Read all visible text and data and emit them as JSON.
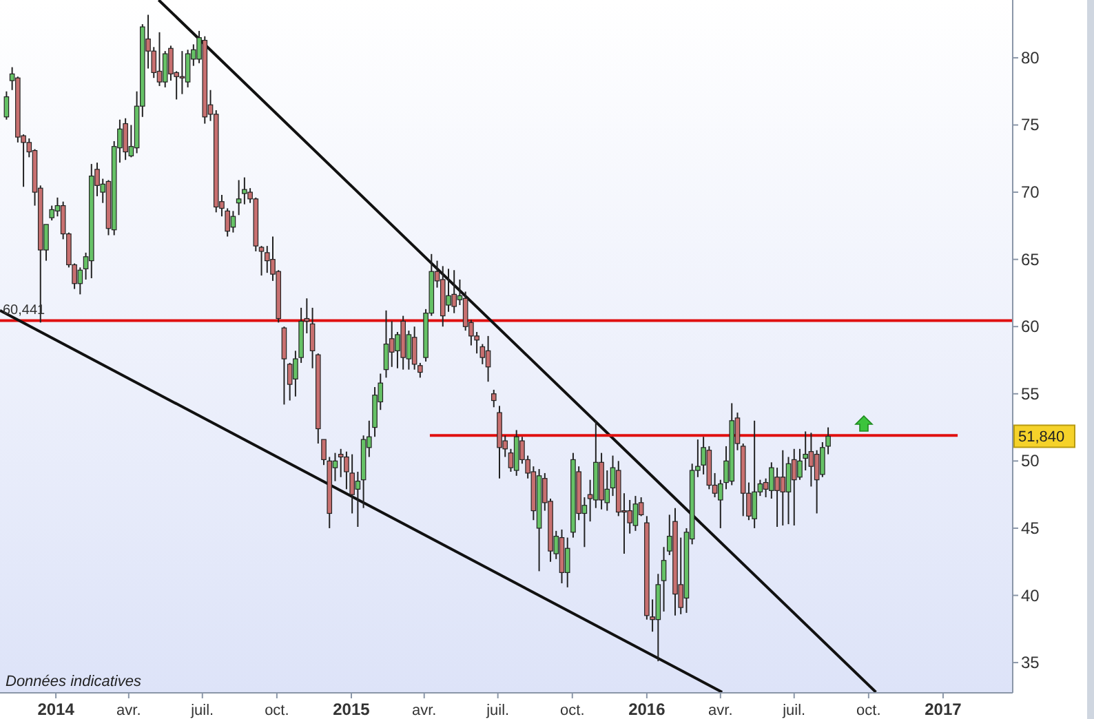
{
  "chart_data": {
    "type": "candlestick",
    "x": [
      "2013-11-01",
      "2013-11-08",
      "2013-11-15",
      "2013-11-22",
      "2013-11-29",
      "2013-12-06",
      "2013-12-13",
      "2013-12-20",
      "2013-12-27",
      "2014-01-03",
      "2014-01-10",
      "2014-01-17",
      "2014-01-24",
      "2014-01-31",
      "2014-02-07",
      "2014-02-14",
      "2014-02-21",
      "2014-02-28",
      "2014-03-07",
      "2014-03-14",
      "2014-03-21",
      "2014-03-28",
      "2014-04-04",
      "2014-04-11",
      "2014-04-18",
      "2014-04-25",
      "2014-05-02",
      "2014-05-09",
      "2014-05-16",
      "2014-05-23",
      "2014-05-30",
      "2014-06-06",
      "2014-06-13",
      "2014-06-20",
      "2014-06-27",
      "2014-07-04",
      "2014-07-11",
      "2014-07-18",
      "2014-07-25",
      "2014-08-01",
      "2014-08-08",
      "2014-08-15",
      "2014-08-22",
      "2014-08-29",
      "2014-09-05",
      "2014-09-12",
      "2014-09-19",
      "2014-09-26",
      "2014-10-03",
      "2014-10-10",
      "2014-10-17",
      "2014-10-24",
      "2014-10-31",
      "2014-11-07",
      "2014-11-14",
      "2014-11-21",
      "2014-11-28",
      "2014-12-05",
      "2014-12-12",
      "2014-12-19",
      "2014-12-26",
      "2015-01-02",
      "2015-01-09",
      "2015-01-16",
      "2015-01-23",
      "2015-01-30",
      "2015-02-06",
      "2015-02-13",
      "2015-02-20",
      "2015-02-27",
      "2015-03-06",
      "2015-03-13",
      "2015-03-20",
      "2015-03-27",
      "2015-04-03",
      "2015-04-10",
      "2015-04-17",
      "2015-04-24",
      "2015-05-01",
      "2015-05-08",
      "2015-05-15",
      "2015-05-22",
      "2015-05-29",
      "2015-06-05",
      "2015-06-12",
      "2015-06-19",
      "2015-06-26",
      "2015-07-03",
      "2015-07-10",
      "2015-07-17",
      "2015-07-24",
      "2015-07-31",
      "2015-08-07",
      "2015-08-14",
      "2015-08-21",
      "2015-08-28",
      "2015-09-04",
      "2015-09-11",
      "2015-09-18",
      "2015-09-25",
      "2015-10-02",
      "2015-10-09",
      "2015-10-16",
      "2015-10-23",
      "2015-10-30",
      "2015-11-06",
      "2015-11-13",
      "2015-11-20",
      "2015-11-27",
      "2015-12-04",
      "2015-12-11",
      "2015-12-18",
      "2015-12-25",
      "2016-01-01",
      "2016-01-08",
      "2016-01-15",
      "2016-01-22",
      "2016-01-29",
      "2016-02-05",
      "2016-02-12",
      "2016-02-19",
      "2016-02-26",
      "2016-03-04",
      "2016-03-11",
      "2016-03-18",
      "2016-03-25",
      "2016-04-01",
      "2016-04-08",
      "2016-04-15",
      "2016-04-22",
      "2016-04-29",
      "2016-05-06",
      "2016-05-13",
      "2016-05-20",
      "2016-05-27",
      "2016-06-03",
      "2016-06-10",
      "2016-06-17",
      "2016-06-24",
      "2016-07-01",
      "2016-07-08",
      "2016-07-15",
      "2016-07-22",
      "2016-07-29",
      "2016-08-05",
      "2016-08-12"
    ],
    "ohlc": [
      [
        75.6,
        77.5,
        75.4,
        77.1
      ],
      [
        78.3,
        79.3,
        77.6,
        78.8
      ],
      [
        78.5,
        78.6,
        73.7,
        74.1
      ],
      [
        74.2,
        74.3,
        70.4,
        73.7
      ],
      [
        73.7,
        74,
        72.6,
        73
      ],
      [
        73.1,
        73.2,
        69,
        70
      ],
      [
        70.3,
        70.5,
        60.3,
        65.7
      ],
      [
        65.7,
        67.6,
        64.9,
        67.6
      ],
      [
        68.1,
        69,
        67.9,
        68.7
      ],
      [
        68.6,
        69.6,
        68.2,
        69
      ],
      [
        69,
        69.3,
        66.5,
        66.9
      ],
      [
        66.9,
        67,
        64.4,
        64.6
      ],
      [
        64.6,
        64.7,
        62.8,
        63.2
      ],
      [
        63.2,
        64.4,
        62.4,
        64.2
      ],
      [
        64.3,
        65.5,
        63.5,
        65.2
      ],
      [
        64.9,
        72.1,
        63.6,
        71.2
      ],
      [
        71.7,
        72.2,
        69.7,
        70.5
      ],
      [
        70,
        71,
        69.2,
        70.6
      ],
      [
        70.8,
        70.9,
        66.8,
        67.3
      ],
      [
        67.2,
        73.8,
        66.8,
        73.4
      ],
      [
        73.3,
        75.4,
        72.2,
        74.7
      ],
      [
        75.1,
        75.5,
        72.4,
        73
      ],
      [
        72.7,
        75,
        72.6,
        73.4
      ],
      [
        73.3,
        77.5,
        72.9,
        76.4
      ],
      [
        76.4,
        82.5,
        75.6,
        82.3
      ],
      [
        81.4,
        83.2,
        79.2,
        80.5
      ],
      [
        80.5,
        80.8,
        78.5,
        78.9
      ],
      [
        79,
        81.9,
        77.9,
        78.2
      ],
      [
        78.2,
        80.5,
        77.8,
        80.3
      ],
      [
        80.7,
        80.9,
        78.3,
        78.8
      ],
      [
        78.9,
        79,
        76.9,
        78.6
      ],
      [
        78.6,
        80.5,
        77.3,
        78.5
      ],
      [
        78.2,
        80.6,
        77.8,
        80.3
      ],
      [
        79.9,
        81,
        79.4,
        80.6
      ],
      [
        79.9,
        82,
        79.6,
        81.5
      ],
      [
        81.3,
        81.6,
        75.1,
        75.6
      ],
      [
        76.5,
        77.6,
        75.3,
        75.8
      ],
      [
        75.8,
        76.1,
        68.5,
        68.9
      ],
      [
        69.3,
        69.8,
        68.2,
        68.8
      ],
      [
        68.6,
        68.8,
        66.7,
        67.1
      ],
      [
        67.4,
        68.6,
        67,
        68.2
      ],
      [
        69.2,
        70.9,
        68.3,
        69.5
      ],
      [
        69.9,
        71.1,
        69.1,
        70.2
      ],
      [
        70,
        70.3,
        69.2,
        69.5
      ],
      [
        69.5,
        69.6,
        65.6,
        66
      ],
      [
        65.9,
        66,
        63.8,
        65.6
      ],
      [
        65.5,
        66,
        64,
        64.9
      ],
      [
        65,
        66.7,
        63.4,
        63.9
      ],
      [
        64.1,
        64.2,
        60.3,
        60.6
      ],
      [
        59.9,
        60,
        54.2,
        57.6
      ],
      [
        57.2,
        57.3,
        54.5,
        55.7
      ],
      [
        56.1,
        58.2,
        54.8,
        57.6
      ],
      [
        57.7,
        61.4,
        57.3,
        60.4
      ],
      [
        60.6,
        62.1,
        59.5,
        60.4
      ],
      [
        60.2,
        61.4,
        56.9,
        58.2
      ],
      [
        57.9,
        58,
        51.3,
        52.4
      ],
      [
        51.6,
        51.6,
        49.7,
        50.1
      ],
      [
        50,
        50.3,
        45,
        46.1
      ],
      [
        49.5,
        50.6,
        48.5,
        50
      ],
      [
        50.5,
        50.9,
        48.8,
        50.3
      ],
      [
        50.3,
        50.7,
        47.9,
        49.2
      ],
      [
        49.1,
        50.5,
        46.1,
        47.5
      ],
      [
        47.9,
        49.2,
        45.1,
        48.5
      ],
      [
        48.6,
        51.9,
        46.5,
        51.6
      ],
      [
        51,
        53,
        50.3,
        51.8
      ],
      [
        52.5,
        55.5,
        51.8,
        54.9
      ],
      [
        54.4,
        56.5,
        53.8,
        55.8
      ],
      [
        56.8,
        61.2,
        56.2,
        58.7
      ],
      [
        59.1,
        60.4,
        57,
        58.1
      ],
      [
        58.2,
        59.6,
        56.9,
        59.4
      ],
      [
        60.4,
        60.8,
        56.8,
        57.7
      ],
      [
        57.6,
        59.7,
        56.8,
        59.4
      ],
      [
        59.2,
        60,
        56.8,
        57.2
      ],
      [
        57.1,
        57.3,
        56.2,
        56.6
      ],
      [
        57.7,
        61.3,
        57.4,
        61
      ],
      [
        61,
        65.4,
        60.8,
        64.1
      ],
      [
        64.1,
        64.9,
        62.9,
        63.4
      ],
      [
        63.5,
        64.5,
        60,
        60.8
      ],
      [
        61.6,
        64.3,
        61.1,
        62.3
      ],
      [
        62.4,
        64.2,
        61,
        61.5
      ],
      [
        62,
        63.5,
        61.6,
        62.3
      ],
      [
        62.1,
        62.6,
        59.7,
        60
      ],
      [
        60.3,
        60.5,
        58.6,
        59.3
      ],
      [
        59.3,
        59.6,
        58,
        59
      ],
      [
        58.5,
        58.7,
        57.2,
        57.7
      ],
      [
        58.2,
        59.3,
        55.9,
        57
      ],
      [
        55,
        55.3,
        54,
        54.5
      ],
      [
        53.6,
        54.1,
        48.7,
        51
      ],
      [
        51.5,
        51.9,
        50.3,
        50.9
      ],
      [
        50.6,
        50.9,
        49.2,
        49.5
      ],
      [
        49.3,
        52.3,
        48.9,
        51.8
      ],
      [
        51.5,
        51.8,
        49.8,
        50.1
      ],
      [
        50.1,
        50.4,
        48.7,
        49.1
      ],
      [
        49.2,
        49.6,
        45.6,
        46.3
      ],
      [
        45,
        49.4,
        41.8,
        48.9
      ],
      [
        48.7,
        49.1,
        46.3,
        46.9
      ],
      [
        47,
        47.2,
        42.5,
        43.3
      ],
      [
        43.1,
        44.8,
        42.7,
        44.4
      ],
      [
        44.3,
        44.9,
        40.9,
        41.7
      ],
      [
        41.7,
        44.3,
        40.6,
        43.5
      ],
      [
        44.7,
        50.6,
        44.3,
        50.1
      ],
      [
        49.2,
        49.6,
        45.6,
        46.1
      ],
      [
        46.1,
        47.3,
        43.6,
        46.7
      ],
      [
        47.5,
        48.6,
        45.5,
        47.2
      ],
      [
        47.1,
        53,
        46.5,
        49.9
      ],
      [
        49.9,
        50.6,
        46.4,
        47.1
      ],
      [
        46.9,
        49.3,
        46.3,
        47.9
      ],
      [
        48,
        50.4,
        47.4,
        49.5
      ],
      [
        49.3,
        50,
        45.9,
        46.2
      ],
      [
        46.3,
        47.6,
        43.1,
        46.2
      ],
      [
        46.3,
        47.1,
        44.6,
        45.4
      ],
      [
        45.2,
        47.4,
        44.8,
        46.8
      ],
      [
        46.9,
        47.3,
        45.9,
        46
      ],
      [
        45.4,
        45.9,
        38.2,
        38.5
      ],
      [
        38.4,
        39.7,
        37.3,
        38.2
      ],
      [
        38.2,
        41.6,
        35.1,
        40.8
      ],
      [
        41.1,
        43.6,
        38.8,
        42.6
      ],
      [
        43.3,
        46,
        43,
        44.4
      ],
      [
        45.5,
        46.5,
        38.5,
        40.1
      ],
      [
        40.8,
        44.3,
        38.6,
        39.1
      ],
      [
        39.8,
        45,
        38.7,
        44.7
      ],
      [
        44.2,
        49.8,
        43.8,
        49.3
      ],
      [
        49.3,
        51.6,
        48.8,
        49.6
      ],
      [
        49.7,
        51.8,
        49,
        51
      ],
      [
        50.8,
        51.1,
        47.9,
        48.2
      ],
      [
        48.2,
        49.1,
        47.3,
        47.6
      ],
      [
        47.1,
        48.6,
        45,
        48.3
      ],
      [
        48.4,
        51.1,
        47.9,
        50
      ],
      [
        48.5,
        54.3,
        48.2,
        53
      ],
      [
        53.2,
        53.6,
        50.8,
        51.3
      ],
      [
        51.1,
        51.3,
        45.9,
        47.6
      ],
      [
        47.6,
        48.4,
        45.6,
        45.9
      ],
      [
        45.7,
        53,
        45,
        47.7
      ],
      [
        47.7,
        48.6,
        47.4,
        48.3
      ],
      [
        48.4,
        48.7,
        47.3,
        47.9
      ],
      [
        47.8,
        49.9,
        47.2,
        49.5
      ],
      [
        48.8,
        49.5,
        45.1,
        47.8
      ],
      [
        48.8,
        50.8,
        45.2,
        47.7
      ],
      [
        47.7,
        50.3,
        45.3,
        49.8
      ],
      [
        50.1,
        50.9,
        45.2,
        48.6
      ],
      [
        48.8,
        50.9,
        48.6,
        50
      ],
      [
        50.2,
        52.2,
        49.3,
        50.5
      ],
      [
        50.7,
        52.1,
        48.1,
        49.6
      ],
      [
        50.5,
        50.8,
        46.1,
        48.6
      ],
      [
        49,
        51.4,
        48.8,
        51
      ],
      [
        51.1,
        52.5,
        50.5,
        51.84
      ]
    ],
    "series": [
      {
        "type": "line",
        "x": [
          "2014-05-08",
          "2016-10-10"
        ],
        "values": [
          84.3,
          32.8
        ],
        "color": "#111111"
      },
      {
        "type": "line",
        "x": [
          "2013-10-24",
          "2016-04-03"
        ],
        "values": [
          61.2,
          32.8
        ],
        "color": "#111111"
      },
      {
        "type": "line",
        "x": [
          "2015-04-08",
          "2017-01-19"
        ],
        "values": [
          51.9,
          51.9
        ],
        "color": "#e01010"
      }
    ],
    "xlim": [
      "2013-10-24",
      "2017-03-28"
    ],
    "xticks": [
      {
        "value": "2014-01-01",
        "label": "2014"
      },
      {
        "value": "2014-04-01",
        "label": "avr."
      },
      {
        "value": "2014-07-01",
        "label": "juil."
      },
      {
        "value": "2014-10-01",
        "label": "oct."
      },
      {
        "value": "2015-01-01",
        "label": "2015"
      },
      {
        "value": "2015-04-01",
        "label": "avr."
      },
      {
        "value": "2015-07-01",
        "label": "juil."
      },
      {
        "value": "2015-10-01",
        "label": "oct."
      },
      {
        "value": "2016-01-01",
        "label": "2016"
      },
      {
        "value": "2016-04-01",
        "label": "avr."
      },
      {
        "value": "2016-07-01",
        "label": "juil."
      },
      {
        "value": "2016-10-01",
        "label": "oct."
      },
      {
        "value": "2017-01-01",
        "label": "2017"
      }
    ],
    "ylim": [
      32.75,
      84.3
    ],
    "yticks": [
      35,
      40,
      45,
      50,
      55,
      60,
      65,
      70,
      75,
      80
    ],
    "ref_lines": [
      {
        "axis": "y",
        "value": 60.441,
        "label": "60,441",
        "color": "#e01010"
      }
    ],
    "annotations": [
      "Données indicatives",
      "51,840"
    ],
    "grid": false
  }
}
